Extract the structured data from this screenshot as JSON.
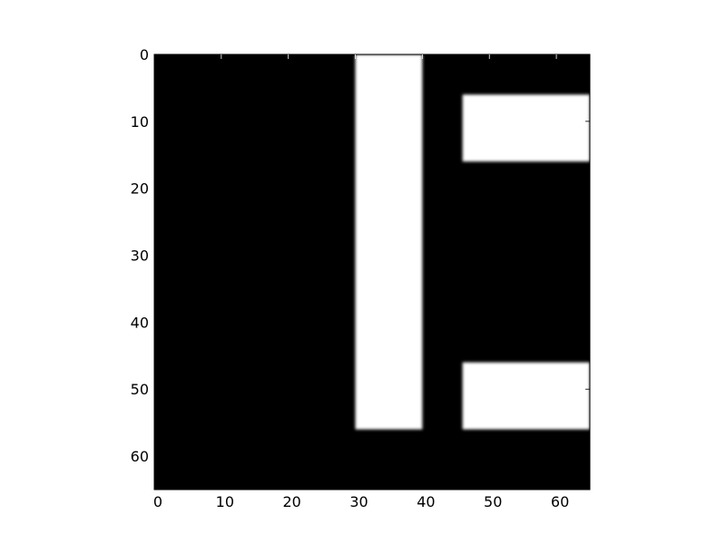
{
  "chart_data": {
    "type": "heatmap",
    "colormap": "gray",
    "image_size": [
      65,
      65
    ],
    "xlim": [
      0,
      65
    ],
    "ylim": [
      65,
      0
    ],
    "y_axis_inverted": true,
    "interpolation": "smooth",
    "background_value": 0,
    "x_ticks": [
      0,
      10,
      20,
      30,
      40,
      50,
      60
    ],
    "y_ticks": [
      0,
      10,
      20,
      30,
      40,
      50,
      60
    ],
    "x_tick_labels": [
      "0",
      "10",
      "20",
      "30",
      "40",
      "50",
      "60"
    ],
    "y_tick_labels": [
      "0",
      "10",
      "20",
      "30",
      "40",
      "50",
      "60"
    ],
    "regions": [
      {
        "value": 1,
        "x": [
          30,
          40
        ],
        "y": [
          0,
          56
        ]
      },
      {
        "value": 1,
        "x": [
          46,
          65
        ],
        "y": [
          6,
          16
        ]
      },
      {
        "value": 1,
        "x": [
          46,
          65
        ],
        "y": [
          46,
          56
        ]
      }
    ],
    "title": "",
    "xlabel": "",
    "ylabel": "",
    "grid": false
  },
  "colors": {
    "low": "#000000",
    "high": "#ffffff",
    "frame": "#000000",
    "background": "#ffffff"
  }
}
